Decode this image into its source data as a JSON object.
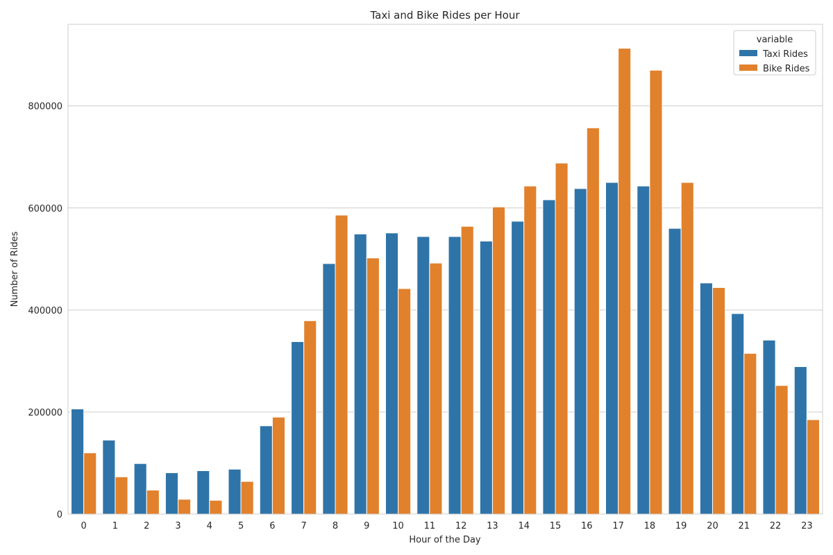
{
  "chart_data": {
    "type": "bar",
    "title": "Taxi and Bike Rides per Hour",
    "xlabel": "Hour of the Day",
    "ylabel": "Number of Rides",
    "categories": [
      "0",
      "1",
      "2",
      "3",
      "4",
      "5",
      "6",
      "7",
      "8",
      "9",
      "10",
      "11",
      "12",
      "13",
      "14",
      "15",
      "16",
      "17",
      "18",
      "19",
      "20",
      "21",
      "22",
      "23"
    ],
    "series": [
      {
        "name": "Taxi Rides",
        "color": "#2f74a8",
        "values": [
          206000,
          145000,
          99000,
          81000,
          85000,
          88000,
          173000,
          338000,
          491000,
          549000,
          551000,
          544000,
          544000,
          535000,
          574000,
          616000,
          638000,
          650000,
          643000,
          560000,
          453000,
          393000,
          341000,
          289000
        ]
      },
      {
        "name": "Bike Rides",
        "color": "#e1812c",
        "values": [
          120000,
          73000,
          47000,
          29000,
          27000,
          64000,
          190000,
          379000,
          586000,
          502000,
          442000,
          492000,
          564000,
          602000,
          643000,
          688000,
          757000,
          913000,
          870000,
          650000,
          444000,
          315000,
          252000,
          185000
        ]
      }
    ],
    "ylim": [
      0,
      960000
    ],
    "yticks": [
      0,
      200000,
      400000,
      600000,
      800000
    ],
    "ytick_labels": [
      "0",
      "200000",
      "400000",
      "600000",
      "800000"
    ],
    "grid": "horizontal",
    "legend": {
      "title": "variable",
      "position": "top-right"
    }
  }
}
